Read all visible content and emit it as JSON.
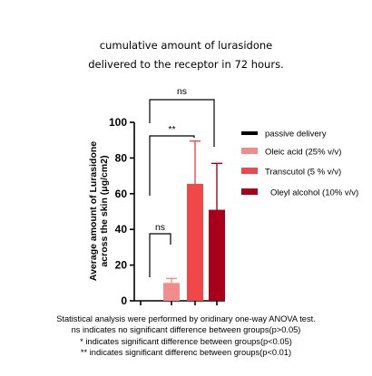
{
  "title_lines": [
    "cumulative amount of lurasidone",
    "delivered to the receptor in 72 hours."
  ],
  "footnote_lines": [
    "Statistical analysis were performed by oridinary one-way ANOVA test.",
    "ns indicates no significant difference between groups(p>0.05)",
    "* indicates significant difference between groups(p<0.05)",
    "** indicates significant differenc between groups(p<0.01)"
  ],
  "chart_data": {
    "type": "bar",
    "title": "cumulative amount of lurasidone delivered to the receptor in 72 hours.",
    "xlabel": "",
    "ylabel_lines": [
      "Average amount of Lurasidone",
      "across the skin (μg/cm2)"
    ],
    "ylim": [
      0,
      100
    ],
    "yticks": [
      0,
      20,
      40,
      60,
      80,
      100
    ],
    "grid": false,
    "legend_position": "right",
    "categories": [
      "passive delivery",
      "Oleic acid (25% v/v)",
      "Transcutol (5 % v/v)",
      "Oleyl alcohol (10% v/v)"
    ],
    "values": [
      0,
      10,
      65.5,
      51
    ],
    "errors": [
      0,
      2.5,
      24,
      26
    ],
    "colors": [
      "#000000",
      "#f08c8c",
      "#f04848",
      "#a8001a"
    ],
    "significance": [
      {
        "from": 0,
        "to": 1,
        "label": "ns"
      },
      {
        "from": 0,
        "to": 2,
        "label": "**"
      },
      {
        "from": 0,
        "to": 3,
        "label": "ns"
      }
    ]
  }
}
